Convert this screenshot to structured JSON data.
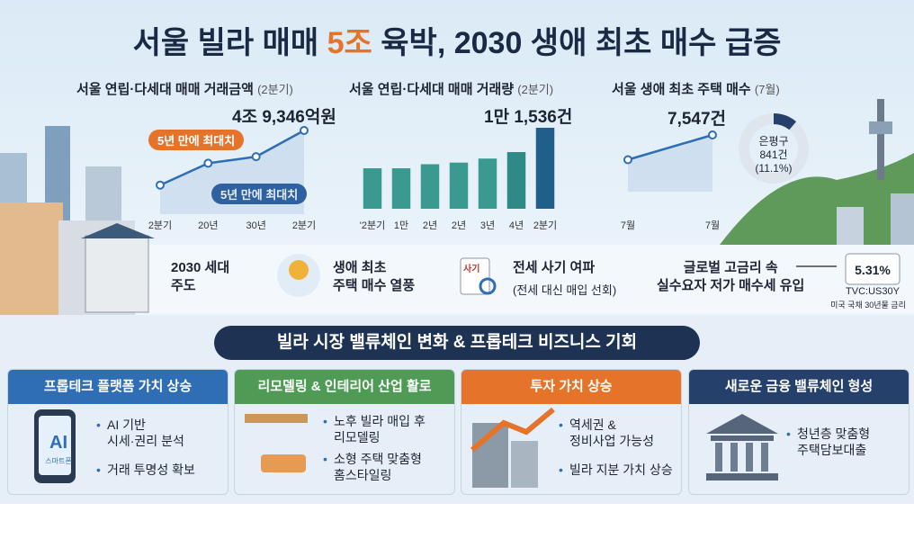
{
  "title_parts": [
    "서울 빌라 매매 ",
    "5조",
    " 육박, 2030 생애 최초 매수 급증"
  ],
  "chart_data": [
    {
      "type": "line",
      "title": "서울 연립·다세대 매매 거래금액",
      "subtitle": "(2분기)",
      "highlight": "4조 9,346억원",
      "annotations": [
        "5년 만에 최대치",
        "5년 만에 최대치"
      ],
      "categories": [
        "2분기",
        "20년",
        "30년",
        "2분기"
      ],
      "values": [
        1,
        2,
        2.3,
        3.5
      ],
      "color": "#2f6db5"
    },
    {
      "type": "bar",
      "title": "서울 연립·다세대 매매 거래량",
      "subtitle": "(2분기)",
      "highlight": "1만 1,536건",
      "categories": [
        "'2분기",
        "1만",
        "2년",
        "2년",
        "3년",
        "4년",
        "2분기"
      ],
      "values": [
        50,
        50,
        55,
        57,
        62,
        70,
        100
      ],
      "colors": [
        "#3a9a8f",
        "#3a9a8f",
        "#3a9a8f",
        "#3a9a8f",
        "#3a9a8f",
        "#2f8a86",
        "#1f5f8a"
      ]
    },
    {
      "type": "line",
      "title": "서울 생애 최초 주택 매수",
      "subtitle": "(7월)",
      "highlight": "7,547건",
      "categories": [
        "7월",
        "7월"
      ],
      "values": [
        1,
        2
      ],
      "color": "#2f6db5",
      "donut": {
        "label": "은평구",
        "count": "841건",
        "share": 11.1,
        "share_label": "(11.1%)",
        "color": "#24406b"
      }
    }
  ],
  "info_row": [
    "2030 세대\n주도",
    "생애 최초\n주택 매수 열풍",
    "전세 사기 여파",
    "글로벌 고금리 속\n실수요자 저가 매수세 유입"
  ],
  "info_note": "(전세 대신 매입 선회)",
  "sticker": "사기",
  "rate": {
    "value": "5.31%",
    "ticker": "TVC:US30Y",
    "caption": "미국 국채 30년물 금리"
  },
  "banner": "빌라 시장 밸류체인 변화 & 프롭테크 비즈니스 기회",
  "cards": [
    {
      "header": "프롭테크 플랫폼 가치 상승",
      "icon_text": [
        "AI",
        "스마트폰"
      ],
      "bullets": [
        "AI 기반\n시세·권리 분석",
        "거래 투명성 확보"
      ]
    },
    {
      "header": "리모델링 & 인테리어 산업 활로",
      "bullets": [
        "노후 빌라 매입 후\n리모델링",
        "소형 주택 맞춤형\n홈스타일링"
      ]
    },
    {
      "header": "투자 가치 상승",
      "bullets": [
        "역세권 &\n정비사업 가능성",
        "빌라 지분 가치 상승"
      ]
    },
    {
      "header": "새로운 금융 밸류체인 형성",
      "bullets": [
        "청년층 맞춤형\n주택담보대출"
      ]
    }
  ]
}
